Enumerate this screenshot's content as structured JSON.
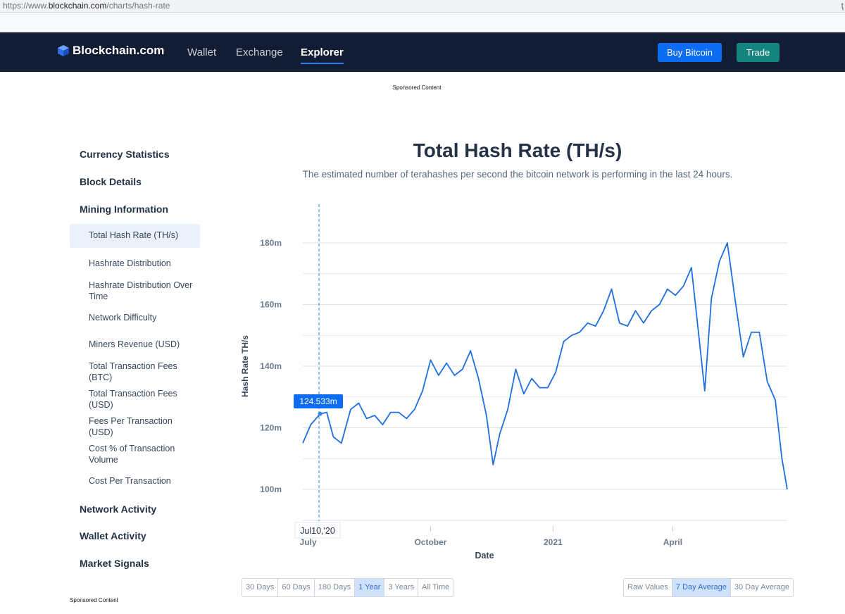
{
  "browser": {
    "url_scheme": "https://www.",
    "url_host": "blockchain.com",
    "url_path": "/charts/hash-rate"
  },
  "header": {
    "logo": "Blockchain.com",
    "nav": [
      "Wallet",
      "Exchange",
      "Explorer"
    ],
    "buy_label": "Buy Bitcoin",
    "trade_label": "Trade"
  },
  "sponsored": "Sponsored Content",
  "sidebar": {
    "currency_statistics": "Currency Statistics",
    "block_details": "Block Details",
    "mining_information": "Mining Information",
    "items": [
      "Total Hash Rate (TH/s)",
      "Hashrate Distribution",
      "Hashrate Distribution Over Time",
      "Network Difficulty",
      "Miners Revenue (USD)",
      "Total Transaction Fees (BTC)",
      "Total Transaction Fees (USD)",
      "Fees Per Transaction (USD)",
      "Cost % of Transaction Volume",
      "Cost Per Transaction"
    ],
    "network_activity": "Network Activity",
    "wallet_activity": "Wallet Activity",
    "market_signals": "Market Signals"
  },
  "range_buttons": [
    "30 Days",
    "60 Days",
    "180 Days",
    "1 Year",
    "3 Years",
    "All Time"
  ],
  "range_selected": "1 Year",
  "avg_buttons": [
    "Raw Values",
    "7 Day Average",
    "30 Day Average"
  ],
  "avg_selected": "7 Day Average",
  "colors": {
    "line": "#1f6fe0",
    "nav_bg": "#121d33",
    "buy": "#0c6cf2",
    "trade": "#14857e"
  },
  "chart_data": {
    "type": "line",
    "title": "Total Hash Rate (TH/s)",
    "subtitle": "The estimated number of terahashes per second the bitcoin network is performing in the last 24 hours.",
    "xlabel": "Date",
    "ylabel": "Hash Rate TH/s",
    "y_ticks": [
      "100m",
      "120m",
      "140m",
      "160m",
      "180m"
    ],
    "x_ticks": [
      "July",
      "October",
      "2021",
      "April"
    ],
    "ylim": [
      90,
      190
    ],
    "grid": "horizontal",
    "series": [
      {
        "values": [
          [
            "2020-06-27",
            115
          ],
          [
            "2020-07-03",
            121
          ],
          [
            "2020-07-10",
            124.5
          ],
          [
            "2020-07-15",
            125
          ],
          [
            "2020-07-20",
            117
          ],
          [
            "2020-07-26",
            115
          ],
          [
            "2020-08-02",
            126
          ],
          [
            "2020-08-08",
            128
          ],
          [
            "2020-08-14",
            123
          ],
          [
            "2020-08-20",
            124
          ],
          [
            "2020-08-26",
            121
          ],
          [
            "2020-09-01",
            125
          ],
          [
            "2020-09-07",
            125
          ],
          [
            "2020-09-13",
            123
          ],
          [
            "2020-09-19",
            126
          ],
          [
            "2020-09-25",
            132
          ],
          [
            "2020-10-01",
            142
          ],
          [
            "2020-10-07",
            137
          ],
          [
            "2020-10-13",
            141
          ],
          [
            "2020-10-19",
            137
          ],
          [
            "2020-10-25",
            139
          ],
          [
            "2020-10-31",
            145
          ],
          [
            "2020-11-06",
            136
          ],
          [
            "2020-11-12",
            124
          ],
          [
            "2020-11-17",
            108
          ],
          [
            "2020-11-22",
            118
          ],
          [
            "2020-11-28",
            126
          ],
          [
            "2020-12-04",
            139
          ],
          [
            "2020-12-10",
            131
          ],
          [
            "2020-12-16",
            136
          ],
          [
            "2020-12-22",
            133
          ],
          [
            "2020-12-28",
            133
          ],
          [
            "2021-01-03",
            138
          ],
          [
            "2021-01-09",
            148
          ],
          [
            "2021-01-15",
            150
          ],
          [
            "2021-01-21",
            151
          ],
          [
            "2021-01-27",
            154
          ],
          [
            "2021-02-02",
            153
          ],
          [
            "2021-02-08",
            158
          ],
          [
            "2021-02-14",
            165
          ],
          [
            "2021-02-20",
            154
          ],
          [
            "2021-02-26",
            153
          ],
          [
            "2021-03-04",
            158
          ],
          [
            "2021-03-10",
            154
          ],
          [
            "2021-03-16",
            158
          ],
          [
            "2021-03-22",
            160
          ],
          [
            "2021-03-28",
            165
          ],
          [
            "2021-04-03",
            163
          ],
          [
            "2021-04-09",
            166
          ],
          [
            "2021-04-15",
            172
          ],
          [
            "2021-04-21",
            148
          ],
          [
            "2021-04-25",
            132
          ],
          [
            "2021-04-30",
            162
          ],
          [
            "2021-05-06",
            174
          ],
          [
            "2021-05-12",
            180
          ],
          [
            "2021-05-18",
            161
          ],
          [
            "2021-05-24",
            143
          ],
          [
            "2021-05-30",
            151
          ],
          [
            "2021-06-05",
            151
          ],
          [
            "2021-06-11",
            135
          ],
          [
            "2021-06-17",
            129
          ],
          [
            "2021-06-22",
            110
          ],
          [
            "2021-06-26",
            100
          ]
        ]
      }
    ],
    "tooltip": {
      "date": "Jul10,'20",
      "value": "124.533m"
    }
  }
}
